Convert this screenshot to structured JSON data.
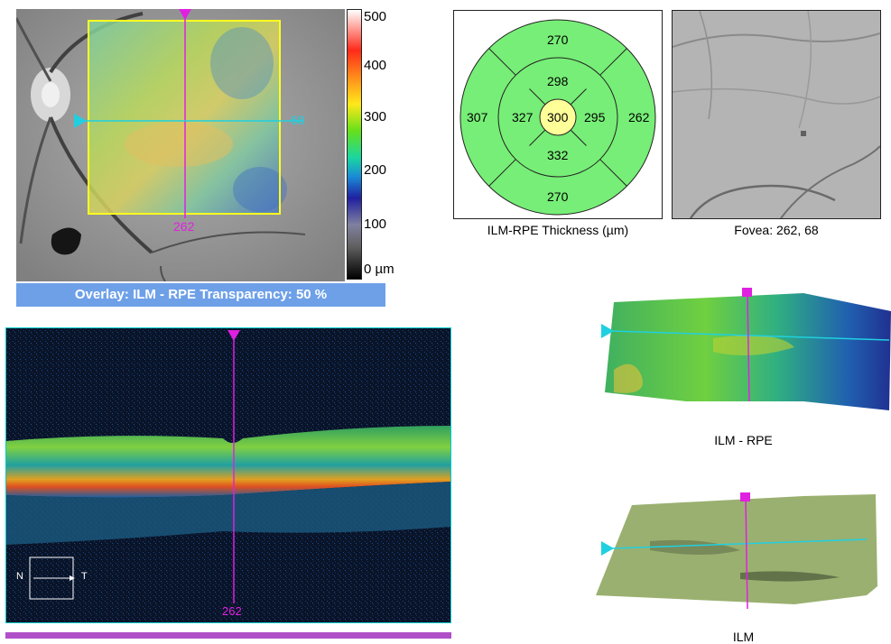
{
  "fundus": {
    "colorbar_ticks": [
      "500",
      "400",
      "300",
      "200",
      "100",
      "0 µm"
    ],
    "fovea_x_label": "262",
    "fovea_y_label": "68",
    "overlay_caption": "Overlay: ILM - RPE  Transparency: 50 %"
  },
  "etdrs": {
    "title": "ILM-RPE Thickness (µm)",
    "center": "300",
    "inner_superior": "298",
    "inner_inferior": "332",
    "inner_nasal": "327",
    "inner_temporal": "295",
    "outer_superior": "270",
    "outer_inferior": "270",
    "outer_nasal": "307",
    "outer_temporal": "262"
  },
  "slo": {
    "fovea_caption": "Fovea: 262, 68"
  },
  "bscan": {
    "orientation_left": "N",
    "orientation_right": "T",
    "position_label": "262"
  },
  "surfaces": {
    "surface1_label": "ILM - RPE",
    "surface2_label": "ILM"
  },
  "colors": {
    "marker_magenta": "#e020e0",
    "marker_cyan": "#20d0e0",
    "sector_green": "#77ee77",
    "center_yellow": "#ffff99",
    "overlay_bar": "#6ea0e8"
  }
}
